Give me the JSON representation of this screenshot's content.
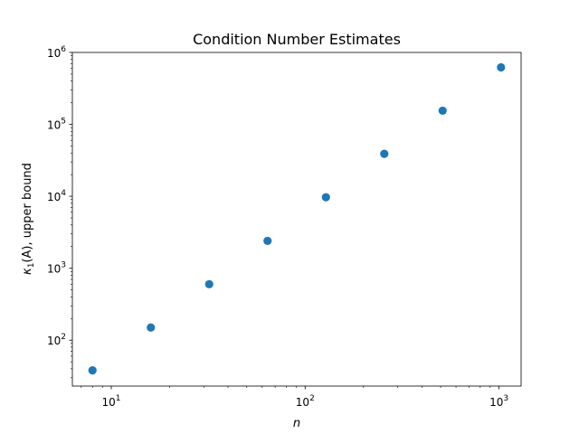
{
  "chart_data": {
    "type": "scatter",
    "title": "Condition Number Estimates",
    "xlabel": "n",
    "ylabel_parts": {
      "kappa": "κ",
      "sub": "1",
      "rest": "(A), upper bound"
    },
    "xscale": "log",
    "yscale": "log",
    "xlim": [
      6.3,
      1300
    ],
    "ylim": [
      23,
      1000000
    ],
    "x_ticks": [
      {
        "base": "10",
        "exp": "1",
        "value": 10
      },
      {
        "base": "10",
        "exp": "2",
        "value": 100
      },
      {
        "base": "10",
        "exp": "3",
        "value": 1000
      }
    ],
    "y_ticks": [
      {
        "base": "10",
        "exp": "2",
        "value": 100
      },
      {
        "base": "10",
        "exp": "3",
        "value": 1000
      },
      {
        "base": "10",
        "exp": "4",
        "value": 10000
      },
      {
        "base": "10",
        "exp": "5",
        "value": 100000
      },
      {
        "base": "10",
        "exp": "6",
        "value": 1000000
      }
    ],
    "grid": false,
    "legend": "none",
    "series": [
      {
        "color": "#1f77b4",
        "points": [
          {
            "x": 8,
            "y": 38
          },
          {
            "x": 16,
            "y": 150
          },
          {
            "x": 32,
            "y": 600
          },
          {
            "x": 64,
            "y": 2400
          },
          {
            "x": 128,
            "y": 9700
          },
          {
            "x": 256,
            "y": 39000
          },
          {
            "x": 512,
            "y": 155000
          },
          {
            "x": 1024,
            "y": 620000
          }
        ]
      }
    ]
  }
}
